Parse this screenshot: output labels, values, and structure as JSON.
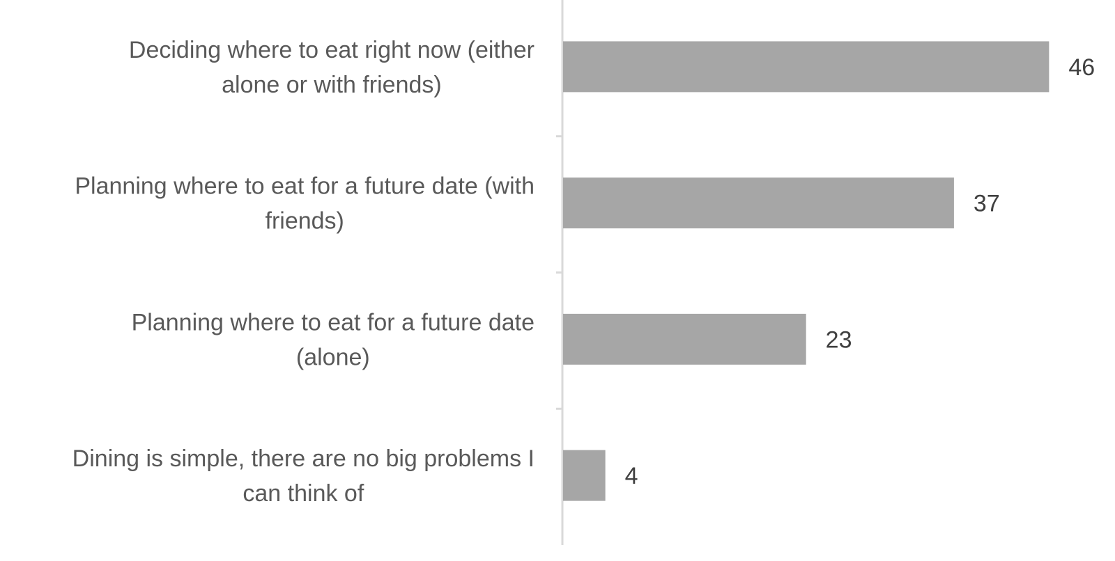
{
  "chart_data": {
    "type": "bar",
    "orientation": "horizontal",
    "categories": [
      "Deciding where to eat right now (either alone or with friends)",
      "Planning where to eat for a future date (with friends)",
      "Planning where to eat for a future date (alone)",
      "Dining is simple, there are no big problems I can think of"
    ],
    "category_lines": [
      [
        "Deciding where to eat right now (either",
        "alone or with friends)"
      ],
      [
        "Planning where to eat for a future date (with",
        "friends)"
      ],
      [
        "Planning where to eat for a future date",
        "(alone)"
      ],
      [
        "Dining is simple, there are no big problems I",
        "can think of"
      ]
    ],
    "values": [
      46,
      37,
      23,
      4
    ],
    "data_labels": [
      "46",
      "37",
      "23",
      "4"
    ],
    "title": "",
    "xlabel": "",
    "ylabel": "",
    "xlim": [
      0,
      50
    ],
    "grid": false,
    "legend": "none",
    "colors": {
      "bar": "#a6a6a6",
      "axis": "#d9d9d9"
    }
  }
}
